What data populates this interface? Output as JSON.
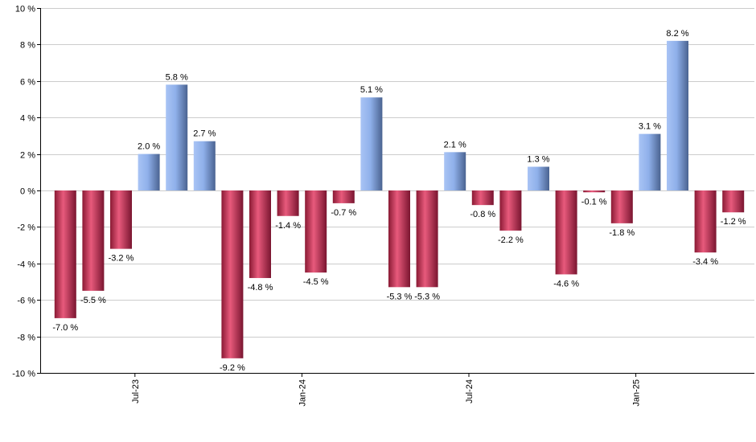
{
  "chart_data": {
    "type": "bar",
    "title": "",
    "xlabel": "",
    "ylabel": "",
    "ylim": [
      -10,
      10
    ],
    "y_ticks": [
      -10,
      -8,
      -6,
      -4,
      -2,
      0,
      2,
      4,
      6,
      8,
      10
    ],
    "y_tick_labels": [
      "-10 %",
      "-8 %",
      "-6 %",
      "-4 %",
      "-2 %",
      "0 %",
      "2 %",
      "4 %",
      "6 %",
      "8 %",
      "10 %"
    ],
    "grid": true,
    "legend": "none",
    "x_tick_labels": [
      {
        "label": "Jul-23",
        "index": 2.5
      },
      {
        "label": "Jan-24",
        "index": 8.5
      },
      {
        "label": "Jul-24",
        "index": 14.5
      },
      {
        "label": "Jan-25",
        "index": 20.5
      }
    ],
    "values": [
      -7.0,
      -5.5,
      -3.2,
      2.0,
      5.8,
      2.7,
      -9.2,
      -4.8,
      -1.4,
      -4.5,
      -0.7,
      5.1,
      -5.3,
      -5.3,
      2.1,
      -0.8,
      -2.2,
      1.3,
      -4.6,
      -0.1,
      -1.8,
      3.1,
      8.2,
      -3.4,
      -1.2
    ],
    "labels": [
      "-7.0 %",
      "-5.5 %",
      "-3.2 %",
      "2.0 %",
      "5.8 %",
      "2.7 %",
      "-9.2 %",
      "-4.8 %",
      "-1.4 %",
      "-4.5 %",
      "-0.7 %",
      "5.1 %",
      "-5.3 %",
      "-5.3 %",
      "2.1 %",
      "-0.8 %",
      "-2.2 %",
      "1.3 %",
      "-4.6 %",
      "-0.1 %",
      "-1.8 %",
      "3.1 %",
      "8.2 %",
      "-3.4 %",
      "-1.2 %"
    ],
    "colors": {
      "positive": "#7f9fd6",
      "negative": "#c8375a",
      "grid": "#cccccc",
      "axis": "#000000"
    }
  }
}
